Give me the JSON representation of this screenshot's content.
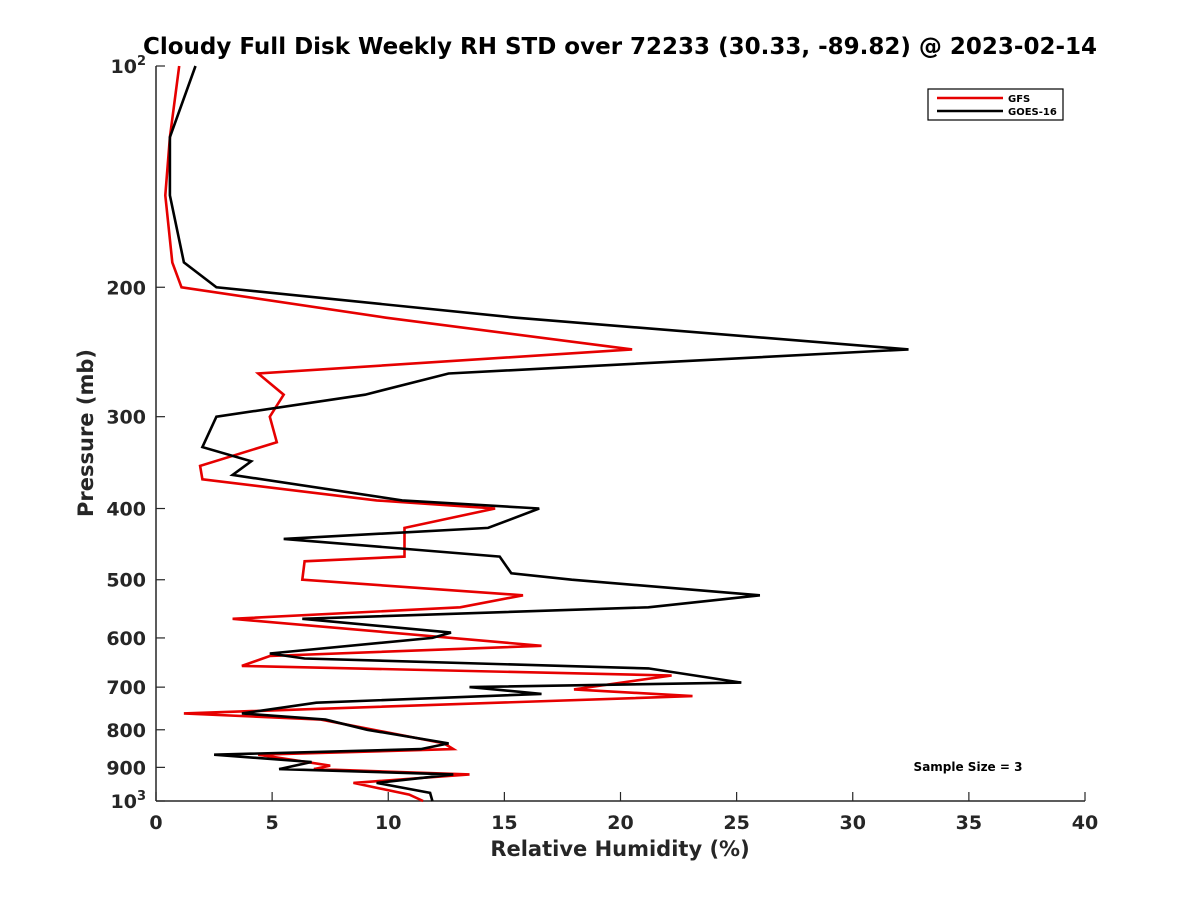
{
  "chart_data": {
    "type": "line",
    "title": "Cloudy Full Disk Weekly RH STD over 72233 (30.33, -89.82) @ 2023-02-14",
    "xlabel": "Relative Humidity (%)",
    "ylabel": "Pressure (mb)",
    "xlim": [
      0,
      40
    ],
    "ylim": [
      100,
      1000
    ],
    "yscale": "log",
    "y_reversed": true,
    "grid": false,
    "legend_position": "top-right",
    "x_ticks": [
      0,
      5,
      10,
      15,
      20,
      25,
      30,
      35,
      40
    ],
    "x_tick_labels": [
      "0",
      "5",
      "10",
      "15",
      "20",
      "25",
      "30",
      "35",
      "40"
    ],
    "y_ticks": [
      {
        "value": 100,
        "base": "10",
        "exp": "2"
      },
      {
        "value": 200,
        "label": "200"
      },
      {
        "value": 300,
        "label": "300"
      },
      {
        "value": 400,
        "label": "400"
      },
      {
        "value": 500,
        "label": "500"
      },
      {
        "value": 600,
        "label": "600"
      },
      {
        "value": 700,
        "label": "700"
      },
      {
        "value": 800,
        "label": "800"
      },
      {
        "value": 900,
        "label": "900"
      },
      {
        "value": 1000,
        "base": "10",
        "exp": "3"
      }
    ],
    "annotation": "Sample Size = 3",
    "series": [
      {
        "name": "GFS",
        "color": "#e60000",
        "points": [
          [
            1.0,
            100
          ],
          [
            0.6,
            125
          ],
          [
            0.4,
            150
          ],
          [
            0.7,
            185
          ],
          [
            1.1,
            200
          ],
          [
            9.9,
            220
          ],
          [
            20.5,
            243
          ],
          [
            4.4,
            262
          ],
          [
            5.5,
            280
          ],
          [
            4.9,
            300
          ],
          [
            5.2,
            325
          ],
          [
            1.9,
            350
          ],
          [
            2.0,
            365
          ],
          [
            9.5,
            390
          ],
          [
            14.6,
            400
          ],
          [
            10.7,
            425
          ],
          [
            10.7,
            465
          ],
          [
            6.4,
            472
          ],
          [
            6.3,
            500
          ],
          [
            15.8,
            525
          ],
          [
            13.1,
            545
          ],
          [
            3.3,
            565
          ],
          [
            16.6,
            615
          ],
          [
            4.9,
            635
          ],
          [
            3.7,
            655
          ],
          [
            22.2,
            675
          ],
          [
            18.0,
            705
          ],
          [
            23.1,
            720
          ],
          [
            1.2,
            760
          ],
          [
            7.1,
            775
          ],
          [
            12.4,
            835
          ],
          [
            12.8,
            850
          ],
          [
            4.4,
            865
          ],
          [
            7.5,
            895
          ],
          [
            6.8,
            905
          ],
          [
            13.5,
            920
          ],
          [
            8.5,
            945
          ],
          [
            10.9,
            980
          ],
          [
            11.5,
            1000
          ]
        ]
      },
      {
        "name": "GOES-16",
        "color": "#000000",
        "points": [
          [
            1.7,
            100
          ],
          [
            0.6,
            125
          ],
          [
            0.6,
            150
          ],
          [
            1.2,
            185
          ],
          [
            2.6,
            200
          ],
          [
            15.5,
            220
          ],
          [
            32.4,
            243
          ],
          [
            12.6,
            262
          ],
          [
            9.0,
            280
          ],
          [
            2.6,
            300
          ],
          [
            2.0,
            330
          ],
          [
            4.1,
            345
          ],
          [
            3.3,
            360
          ],
          [
            10.6,
            390
          ],
          [
            16.5,
            400
          ],
          [
            14.3,
            425
          ],
          [
            5.5,
            440
          ],
          [
            14.8,
            465
          ],
          [
            15.3,
            490
          ],
          [
            17.9,
            500
          ],
          [
            26.0,
            525
          ],
          [
            21.2,
            545
          ],
          [
            6.3,
            565
          ],
          [
            12.7,
            590
          ],
          [
            11.9,
            600
          ],
          [
            4.9,
            630
          ],
          [
            6.4,
            640
          ],
          [
            21.2,
            660
          ],
          [
            25.2,
            690
          ],
          [
            13.5,
            700
          ],
          [
            16.6,
            715
          ],
          [
            6.9,
            735
          ],
          [
            3.7,
            760
          ],
          [
            7.3,
            775
          ],
          [
            9.1,
            800
          ],
          [
            12.6,
            835
          ],
          [
            11.4,
            850
          ],
          [
            2.5,
            865
          ],
          [
            6.7,
            885
          ],
          [
            5.3,
            905
          ],
          [
            12.8,
            920
          ],
          [
            9.5,
            945
          ],
          [
            11.8,
            975
          ],
          [
            11.9,
            1000
          ]
        ]
      }
    ]
  }
}
